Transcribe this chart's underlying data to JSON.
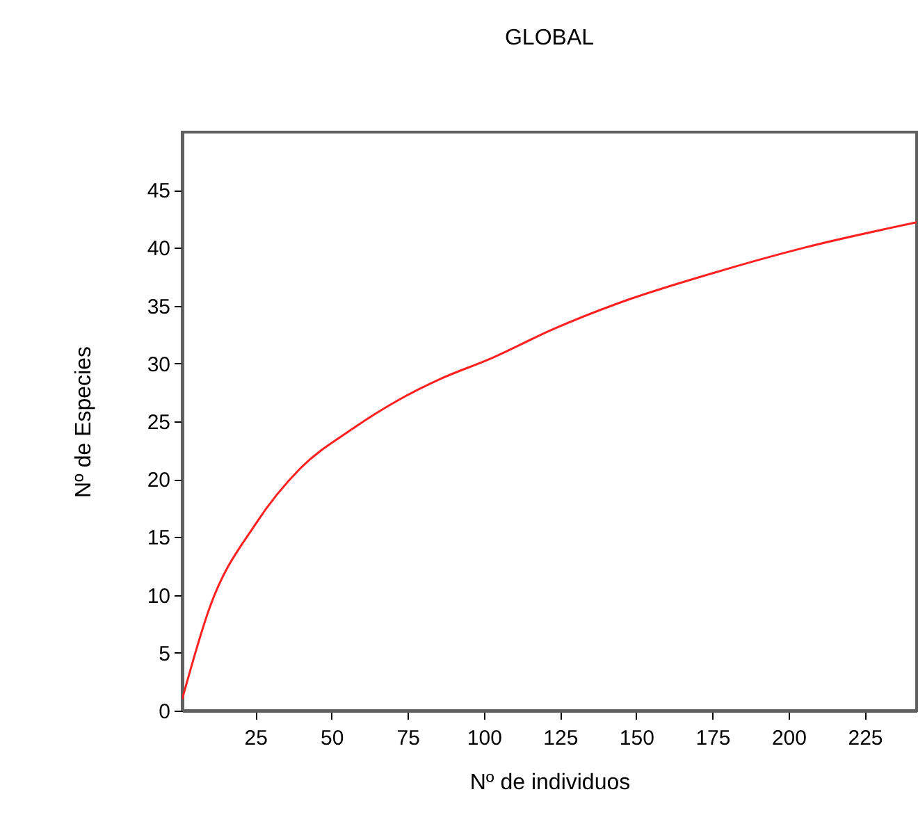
{
  "chart_data": {
    "type": "line",
    "title": "GLOBAL",
    "xlabel": "Nº de individuos",
    "ylabel": "Nº de Especies",
    "x": [
      1,
      10,
      25,
      40,
      56,
      71,
      86,
      102,
      123,
      144,
      175,
      205,
      242
    ],
    "series": [
      {
        "color": "#ff2020",
        "values": [
          1,
          8.9,
          16.1,
          21,
          24.2,
          26.7,
          28.7,
          30.4,
          33,
          35.2,
          37.8,
          40,
          42.2
        ]
      }
    ],
    "xlim": [
      1,
      242
    ],
    "ylim": [
      0,
      50
    ],
    "xticks": [
      25,
      50,
      75,
      100,
      125,
      150,
      175,
      200,
      225
    ],
    "yticks": [
      0,
      5,
      10,
      15,
      20,
      25,
      30,
      35,
      40,
      45
    ],
    "grid": false,
    "legend": false,
    "marker": "none",
    "line_style": "solid"
  }
}
